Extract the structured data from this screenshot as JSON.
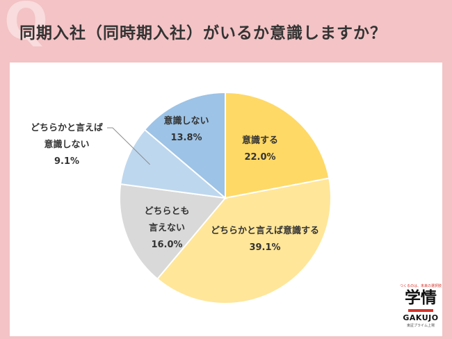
{
  "page": {
    "q_mark": "Q",
    "question": "同期入社（同時期入社）がいるか意識しますか？"
  },
  "chart_data": {
    "type": "pie",
    "title": "同期入社（同時期入社）がいるか意識しますか？",
    "start_angle_deg": 0,
    "direction": "clockwise",
    "slices": [
      {
        "label_lines": [
          "意識する"
        ],
        "value": 22.0,
        "value_text": "22.0%",
        "color": "#ffd966"
      },
      {
        "label_lines": [
          "どちらかと言えば意識する"
        ],
        "value": 39.1,
        "value_text": "39.1%",
        "color": "#ffe699"
      },
      {
        "label_lines": [
          "どちらとも",
          "言えない"
        ],
        "value": 16.0,
        "value_text": "16.0%",
        "color": "#d9d9d9"
      },
      {
        "label_lines": [
          "どちらかと言えば",
          "意識しない"
        ],
        "value": 9.1,
        "value_text": "9.1%",
        "color": "#bdd7ee"
      },
      {
        "label_lines": [
          "意識しない"
        ],
        "value": 13.8,
        "value_text": "13.8%",
        "color": "#9dc3e6"
      }
    ]
  },
  "logo": {
    "tagline": "つくるのは、未来の選択肢",
    "main": "学情",
    "latin": "GAKUJO",
    "sub": "東証プライム上場"
  }
}
